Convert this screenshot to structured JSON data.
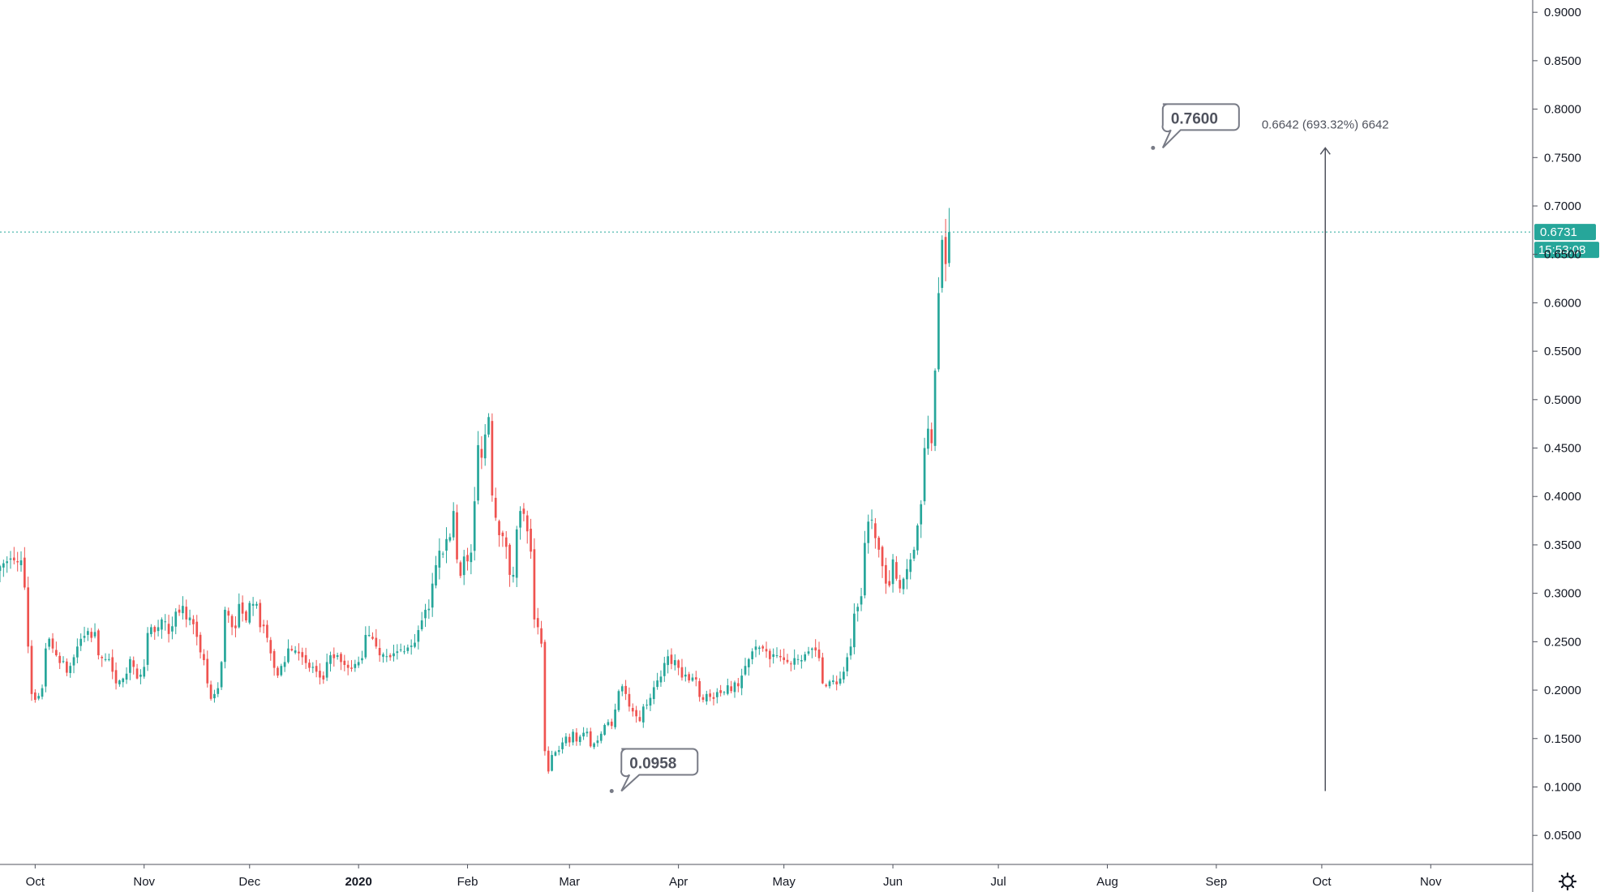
{
  "chart_data": {
    "type": "candlestick",
    "y_axis": {
      "position": "right",
      "range": [
        0.02,
        0.9127
      ],
      "ticks": [
        0.05,
        0.1,
        0.15,
        0.2,
        0.25,
        0.3,
        0.35,
        0.4,
        0.45,
        0.5,
        0.55,
        0.6,
        0.65,
        0.7,
        0.75,
        0.8,
        0.85,
        0.9
      ],
      "tick_labels": [
        "0.0500",
        "0.1000",
        "0.1500",
        "0.2000",
        "0.2500",
        "0.3000",
        "0.3500",
        "0.4000",
        "0.4500",
        "0.5000",
        "0.5500",
        "0.6000",
        "0.6500",
        "0.7000",
        "0.7500",
        "0.8000",
        "0.8500",
        "0.9000"
      ]
    },
    "x_axis": {
      "range": [
        "2019-09-21",
        "2020-11-30"
      ],
      "ticks": [
        {
          "date": "2019-10-01",
          "label": "Oct",
          "bold": false
        },
        {
          "date": "2019-11-01",
          "label": "Nov",
          "bold": false
        },
        {
          "date": "2019-12-01",
          "label": "Dec",
          "bold": false
        },
        {
          "date": "2020-01-01",
          "label": "2020",
          "bold": true
        },
        {
          "date": "2020-02-01",
          "label": "Feb",
          "bold": false
        },
        {
          "date": "2020-03-01",
          "label": "Mar",
          "bold": false
        },
        {
          "date": "2020-04-01",
          "label": "Apr",
          "bold": false
        },
        {
          "date": "2020-05-01",
          "label": "May",
          "bold": false
        },
        {
          "date": "2020-06-01",
          "label": "Jun",
          "bold": false
        },
        {
          "date": "2020-07-01",
          "label": "Jul",
          "bold": false
        },
        {
          "date": "2020-08-01",
          "label": "Aug",
          "bold": false
        },
        {
          "date": "2020-09-01",
          "label": "Sep",
          "bold": false
        },
        {
          "date": "2020-10-01",
          "label": "Oct",
          "bold": false
        },
        {
          "date": "2020-11-01",
          "label": "Nov",
          "bold": false
        }
      ]
    },
    "series": [
      {
        "start_date": "2019-09-21",
        "interval": "1D",
        "close": [
          0.328,
          0.331,
          0.333,
          0.336,
          0.334,
          0.332,
          0.334,
          0.306,
          0.245,
          0.196,
          0.19,
          0.194,
          0.202,
          0.243,
          0.253,
          0.243,
          0.236,
          0.228,
          0.23,
          0.218,
          0.225,
          0.234,
          0.245,
          0.253,
          0.256,
          0.261,
          0.254,
          0.26,
          0.236,
          0.233,
          0.232,
          0.232,
          0.219,
          0.207,
          0.21,
          0.212,
          0.217,
          0.232,
          0.224,
          0.212,
          0.216,
          0.224,
          0.259,
          0.265,
          0.26,
          0.265,
          0.273,
          0.271,
          0.258,
          0.266,
          0.281,
          0.28,
          0.287,
          0.273,
          0.275,
          0.268,
          0.255,
          0.239,
          0.231,
          0.207,
          0.191,
          0.196,
          0.202,
          0.229,
          0.283,
          0.277,
          0.265,
          0.264,
          0.289,
          0.279,
          0.272,
          0.29,
          0.289,
          0.289,
          0.265,
          0.266,
          0.254,
          0.238,
          0.223,
          0.215,
          0.225,
          0.229,
          0.243,
          0.241,
          0.241,
          0.238,
          0.234,
          0.228,
          0.223,
          0.224,
          0.219,
          0.213,
          0.211,
          0.229,
          0.236,
          0.233,
          0.236,
          0.229,
          0.226,
          0.223,
          0.222,
          0.227,
          0.229,
          0.233,
          0.257,
          0.257,
          0.253,
          0.245,
          0.236,
          0.237,
          0.235,
          0.234,
          0.238,
          0.24,
          0.242,
          0.24,
          0.244,
          0.246,
          0.249,
          0.262,
          0.272,
          0.283,
          0.284,
          0.31,
          0.329,
          0.344,
          0.341,
          0.356,
          0.358,
          0.385,
          0.335,
          0.318,
          0.338,
          0.333,
          0.342,
          0.395,
          0.453,
          0.44,
          0.464,
          0.482,
          0.401,
          0.378,
          0.36,
          0.359,
          0.348,
          0.319,
          0.319,
          0.366,
          0.385,
          0.382,
          0.364,
          0.343,
          0.273,
          0.265,
          0.248,
          0.137,
          0.116,
          0.133,
          0.136,
          0.138,
          0.146,
          0.152,
          0.146,
          0.157,
          0.147,
          0.152,
          0.156,
          0.157,
          0.142,
          0.145,
          0.148,
          0.155,
          0.164,
          0.167,
          0.163,
          0.18,
          0.199,
          0.204,
          0.196,
          0.183,
          0.178,
          0.173,
          0.168,
          0.183,
          0.185,
          0.192,
          0.203,
          0.21,
          0.214,
          0.228,
          0.235,
          0.227,
          0.231,
          0.223,
          0.213,
          0.216,
          0.21,
          0.213,
          0.211,
          0.193,
          0.19,
          0.196,
          0.193,
          0.191,
          0.198,
          0.197,
          0.198,
          0.205,
          0.199,
          0.208,
          0.204,
          0.215,
          0.225,
          0.232,
          0.24,
          0.245,
          0.244,
          0.243,
          0.24,
          0.232,
          0.237,
          0.236,
          0.234,
          0.231,
          0.229,
          0.227,
          0.233,
          0.232,
          0.231,
          0.237,
          0.24,
          0.243,
          0.241,
          0.233,
          0.207,
          0.204,
          0.209,
          0.21,
          0.206,
          0.212,
          0.219,
          0.234,
          0.245,
          0.279,
          0.286,
          0.297,
          0.352,
          0.374,
          0.376,
          0.357,
          0.345,
          0.328,
          0.31,
          0.308,
          0.335,
          0.315,
          0.305,
          0.315,
          0.325,
          0.335,
          0.345,
          0.37,
          0.392,
          0.45,
          0.47,
          0.455,
          0.53,
          0.61,
          0.665,
          0.64,
          0.6731
        ]
      }
    ],
    "current_price": "0.6731",
    "countdown": "15:53:08",
    "callouts": [
      {
        "label": "0.7600",
        "date": "2020-08-14",
        "price": 0.76
      },
      {
        "label": "0.0958",
        "date": "2020-03-13",
        "price": 0.0958
      }
    ],
    "measure": {
      "label": "0.6642 (693.32%) 6642",
      "date": "2020-10-02",
      "from": 0.0958,
      "to": 0.76
    }
  },
  "colors": {
    "up": "#26a69a",
    "down": "#ef5350",
    "price_line": "#26a69a",
    "tag_bg": "#26a69a",
    "axis_line": "#50535e",
    "callout_border": "#787b86"
  },
  "icons": {
    "settings": "gear-icon"
  }
}
